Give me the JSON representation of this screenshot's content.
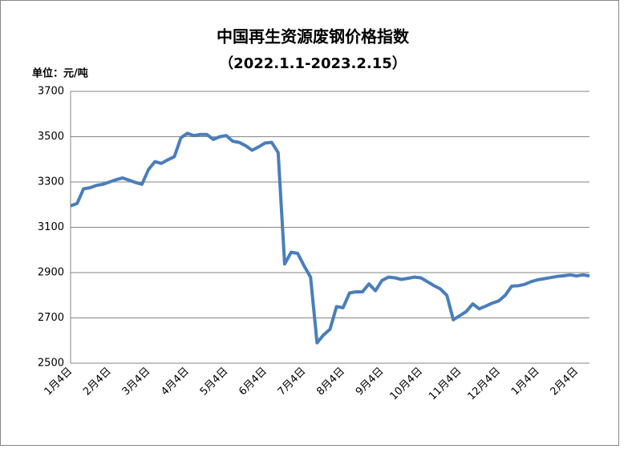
{
  "chart_data": {
    "type": "line",
    "title": "中国再生资源废钢价格指数",
    "subtitle": "（2022.1.1-2023.2.15）",
    "unit_label": "单位：元/吨",
    "categories": [
      "1月4日",
      null,
      null,
      null,
      null,
      null,
      "2月4日",
      null,
      null,
      null,
      null,
      null,
      "3月4日",
      null,
      null,
      null,
      null,
      null,
      "4月4日",
      null,
      null,
      null,
      null,
      null,
      "5月4日",
      null,
      null,
      null,
      null,
      null,
      "6月4日",
      null,
      null,
      null,
      null,
      null,
      "7月4日",
      null,
      null,
      null,
      null,
      null,
      "8月4日",
      null,
      null,
      null,
      null,
      null,
      "9月4日",
      null,
      null,
      null,
      null,
      null,
      "10月4日",
      null,
      null,
      null,
      null,
      null,
      "11月4日",
      null,
      null,
      null,
      null,
      null,
      "12月4日",
      null,
      null,
      null,
      null,
      null,
      "1月4日",
      null,
      null,
      null,
      null,
      null,
      "2月4日",
      null,
      null
    ],
    "series": [
      {
        "color": "#4a7ebb",
        "values": [
          3195,
          3205,
          3270,
          3275,
          3285,
          3290,
          3300,
          3310,
          3318,
          3308,
          3298,
          3290,
          3355,
          3390,
          3382,
          3398,
          3412,
          3495,
          3515,
          3505,
          3510,
          3510,
          3488,
          3500,
          3505,
          3480,
          3475,
          3460,
          3440,
          3455,
          3472,
          3475,
          3430,
          2938,
          2990,
          2985,
          2930,
          2880,
          2590,
          2625,
          2650,
          2750,
          2745,
          2810,
          2815,
          2815,
          2850,
          2820,
          2865,
          2880,
          2877,
          2870,
          2875,
          2880,
          2877,
          2860,
          2843,
          2828,
          2800,
          2692,
          2710,
          2728,
          2762,
          2740,
          2752,
          2765,
          2775,
          2800,
          2840,
          2842,
          2848,
          2860,
          2868,
          2873,
          2878,
          2883,
          2886,
          2890,
          2885,
          2890,
          2885
        ]
      }
    ],
    "ylim": [
      2500,
      3700
    ],
    "yticks": [
      2500,
      2700,
      2900,
      3100,
      3300,
      3500,
      3700
    ],
    "grid": true
  }
}
